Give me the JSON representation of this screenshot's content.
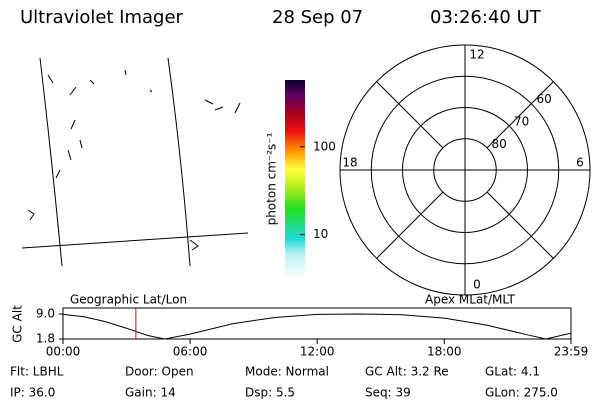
{
  "header": {
    "title": "Ultraviolet Imager",
    "date": "28 Sep 07",
    "time": "03:26:40 UT"
  },
  "image_panel": {
    "label": "Geographic Lat/Lon"
  },
  "colorbar": {
    "label": "photon cm⁻²s⁻¹",
    "range": [
      3.2,
      577
    ],
    "log": true,
    "ticks": [
      10,
      100
    ]
  },
  "polar": {
    "label": "Apex MLat/MLT",
    "colat_range": [
      90,
      50
    ],
    "lat_rings": [
      80,
      70,
      60
    ],
    "mlt_labels": [
      12,
      18,
      6,
      0
    ]
  },
  "altitude": {
    "ylabel": "GC Alt",
    "ylim": [
      1.8,
      9.0
    ],
    "yticks": [
      {
        "value": 9.0,
        "label": "9.0"
      },
      {
        "value": 1.8,
        "label": "1.8"
      }
    ],
    "xlim": [
      0,
      23.983
    ],
    "xticks": [
      {
        "value": 0,
        "label": "00:00"
      },
      {
        "value": 6,
        "label": "06:00"
      },
      {
        "value": 12,
        "label": "12:00"
      },
      {
        "value": 18,
        "label": "18:00"
      },
      {
        "value": 23.983,
        "label": "23:59"
      }
    ],
    "x": [
      0,
      1,
      2,
      3,
      4,
      4.8,
      6,
      8,
      10,
      12,
      14,
      16,
      18,
      20,
      22,
      22.8,
      23.983
    ],
    "values": [
      8.9,
      8.2,
      6.8,
      4.9,
      2.8,
      1.8,
      3.2,
      6.2,
      8.0,
      8.9,
      9.0,
      8.8,
      7.8,
      5.8,
      2.9,
      1.8,
      3.5
    ],
    "marker_hour": 3.44,
    "marker_color": "#dd0000"
  },
  "status": [
    [
      "Flt: LBHL",
      "Door: Open",
      "Mode: Normal",
      "GC Alt: 3.2 Re",
      "GLat: 4.1"
    ],
    [
      "IP: 36.0",
      "Gain: 14",
      "Dsp: 5.5",
      "Seq: 39",
      "GLon: 275.0"
    ]
  ]
}
